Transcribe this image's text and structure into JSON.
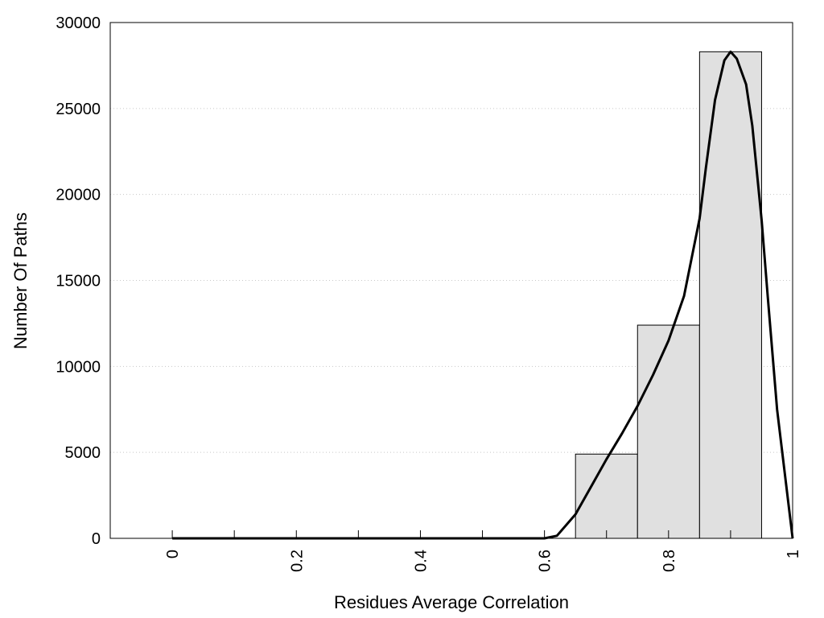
{
  "chart_data": {
    "type": "bar",
    "title": "",
    "xlabel": "Residues Average Correlation",
    "ylabel": "Number Of Paths",
    "xlim": [
      -0.1,
      1.0
    ],
    "ylim": [
      0,
      30000
    ],
    "x_ticks": [
      0,
      0.2,
      0.4,
      0.6,
      0.8,
      1
    ],
    "x_tick_labels": [
      "0",
      "0.2",
      "0.4",
      "0.6",
      "0.8",
      "1"
    ],
    "x_minor_ticks": [
      0.1,
      0.3,
      0.5,
      0.7,
      0.9
    ],
    "y_ticks": [
      0,
      5000,
      10000,
      15000,
      20000,
      25000,
      30000
    ],
    "y_tick_labels": [
      "0",
      "5000",
      "10000",
      "15000",
      "20000",
      "25000",
      "30000"
    ],
    "grid": "horizontal-dotted",
    "bars": [
      {
        "x0": 0.65,
        "x1": 0.75,
        "value": 4900
      },
      {
        "x0": 0.75,
        "x1": 0.85,
        "value": 12400
      },
      {
        "x0": 0.85,
        "x1": 0.95,
        "value": 28300
      }
    ],
    "bar_color": "#e0e0e0",
    "curve": {
      "color": "#000000",
      "points": [
        [
          0.0,
          0
        ],
        [
          0.6,
          0
        ],
        [
          0.62,
          150
        ],
        [
          0.65,
          1400
        ],
        [
          0.675,
          3000
        ],
        [
          0.7,
          4600
        ],
        [
          0.725,
          6100
        ],
        [
          0.75,
          7700
        ],
        [
          0.775,
          9500
        ],
        [
          0.8,
          11500
        ],
        [
          0.825,
          14100
        ],
        [
          0.85,
          18600
        ],
        [
          0.86,
          21500
        ],
        [
          0.875,
          25500
        ],
        [
          0.89,
          27800
        ],
        [
          0.9,
          28300
        ],
        [
          0.91,
          27900
        ],
        [
          0.925,
          26400
        ],
        [
          0.935,
          24000
        ],
        [
          0.95,
          18500
        ],
        [
          0.96,
          14000
        ],
        [
          0.975,
          7500
        ],
        [
          1.0,
          0
        ]
      ]
    }
  }
}
